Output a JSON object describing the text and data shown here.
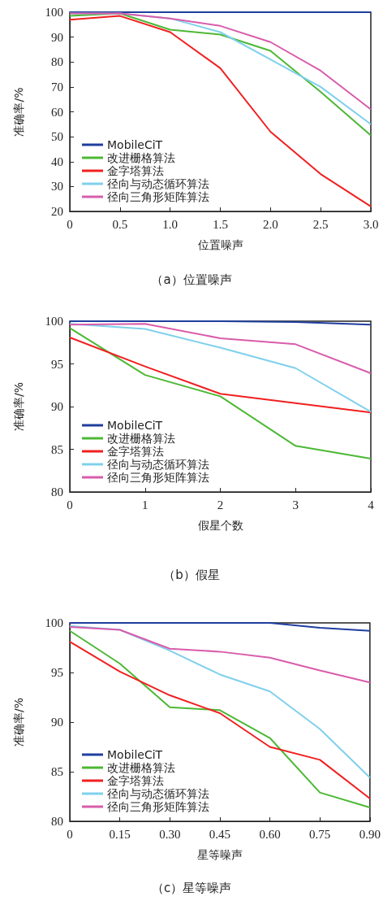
{
  "chart_data": [
    {
      "type": "line",
      "title": "（a）位置噪声",
      "xlabel": "位置噪声",
      "ylabel": "准确率/%",
      "x": [
        0,
        0.5,
        1,
        1.5,
        2,
        2.5,
        3
      ],
      "xlim": [
        0,
        3
      ],
      "xticks": [
        0,
        0.5,
        {
          "value": 1,
          "label": "1.0"
        },
        1.5,
        {
          "value": 2,
          "label": "2.0"
        },
        2.5,
        {
          "value": 3,
          "label": "3.0"
        }
      ],
      "ylim": [
        20,
        100
      ],
      "yticks": [
        20,
        30,
        40,
        50,
        60,
        70,
        80,
        90,
        100
      ],
      "grid": false,
      "legend": "bottom left",
      "marker": "none",
      "line_style": "solid",
      "series": [
        {
          "name": "MobileCiT",
          "color": "#1f3e9e",
          "values": [
            100,
            100,
            100,
            100,
            100,
            100,
            100
          ]
        },
        {
          "name": "改进栅格算法",
          "color": "#4cb834",
          "values": [
            98.5,
            99.5,
            93,
            91,
            84.5,
            68,
            50.5
          ]
        },
        {
          "name": "金字塔算法",
          "color": "#f02020",
          "values": [
            97,
            98.5,
            92,
            77.5,
            52,
            35,
            22
          ]
        },
        {
          "name": "径向与动态循环算法",
          "color": "#7fd0ec",
          "values": [
            99.5,
            99.5,
            97.5,
            92,
            81,
            70,
            55
          ]
        },
        {
          "name": "径向三角形矩阵算法",
          "color": "#d95cab",
          "values": [
            99.5,
            99.5,
            97.5,
            94.5,
            88,
            76.5,
            61
          ]
        }
      ]
    },
    {
      "type": "line",
      "title": "（b）假星",
      "xlabel": "假星个数",
      "ylabel": "准确率/%",
      "x": [
        0,
        1,
        2,
        3,
        4
      ],
      "xlim": [
        0,
        4
      ],
      "xticks": [
        0,
        1,
        2,
        3,
        4
      ],
      "ylim": [
        80,
        100
      ],
      "yticks": [
        80,
        85,
        90,
        95,
        100
      ],
      "grid": false,
      "legend": "bottom left",
      "marker": "none",
      "line_style": "solid",
      "series": [
        {
          "name": "MobileCiT",
          "color": "#1f3e9e",
          "values": [
            100,
            100,
            100,
            99.9,
            99.6
          ]
        },
        {
          "name": "改进栅格算法",
          "color": "#4cb834",
          "values": [
            99.2,
            93.7,
            91.2,
            85.4,
            83.9
          ]
        },
        {
          "name": "金字塔算法",
          "color": "#f02020",
          "values": [
            98.1,
            94.7,
            91.5,
            90.4,
            89.3
          ]
        },
        {
          "name": "径向与动态循环算法",
          "color": "#7fd0ec",
          "values": [
            99.7,
            99.1,
            96.9,
            94.5,
            89.4
          ]
        },
        {
          "name": "径向三角形矩阵算法",
          "color": "#d95cab",
          "values": [
            99.6,
            99.7,
            98.0,
            97.3,
            93.9
          ]
        }
      ]
    },
    {
      "type": "line",
      "title": "（c）星等噪声",
      "xlabel": "星等噪声",
      "ylabel": "准确率/%",
      "x": [
        0,
        0.15,
        0.3,
        0.45,
        0.6,
        0.75,
        0.9
      ],
      "xlim": [
        0,
        0.9
      ],
      "xticks": [
        0,
        0.15,
        {
          "value": 0.3,
          "label": "0.30"
        },
        0.45,
        {
          "value": 0.6,
          "label": "0.60"
        },
        0.75,
        {
          "value": 0.9,
          "label": "0.90"
        }
      ],
      "ylim": [
        80,
        100
      ],
      "yticks": [
        80,
        85,
        90,
        95,
        100
      ],
      "grid": false,
      "legend": "bottom left",
      "marker": "none",
      "line_style": "solid",
      "series": [
        {
          "name": "MobileCiT",
          "color": "#1f3e9e",
          "values": [
            100,
            100,
            100,
            100,
            100,
            99.5,
            99.2
          ]
        },
        {
          "name": "改进栅格算法",
          "color": "#4cb834",
          "values": [
            99.2,
            95.9,
            91.5,
            91.2,
            88.4,
            82.9,
            81.4
          ]
        },
        {
          "name": "金字塔算法",
          "color": "#f02020",
          "values": [
            98.1,
            95.1,
            92.7,
            90.9,
            87.5,
            86.2,
            82.3
          ]
        },
        {
          "name": "径向与动态循环算法",
          "color": "#7fd0ec",
          "values": [
            99.7,
            99.3,
            97.2,
            94.8,
            93.1,
            89.3,
            84.4
          ]
        },
        {
          "name": "径向三角形矩阵算法",
          "color": "#d95cab",
          "values": [
            99.6,
            99.3,
            97.4,
            97.1,
            96.5,
            95.2,
            94.0
          ]
        }
      ]
    }
  ]
}
